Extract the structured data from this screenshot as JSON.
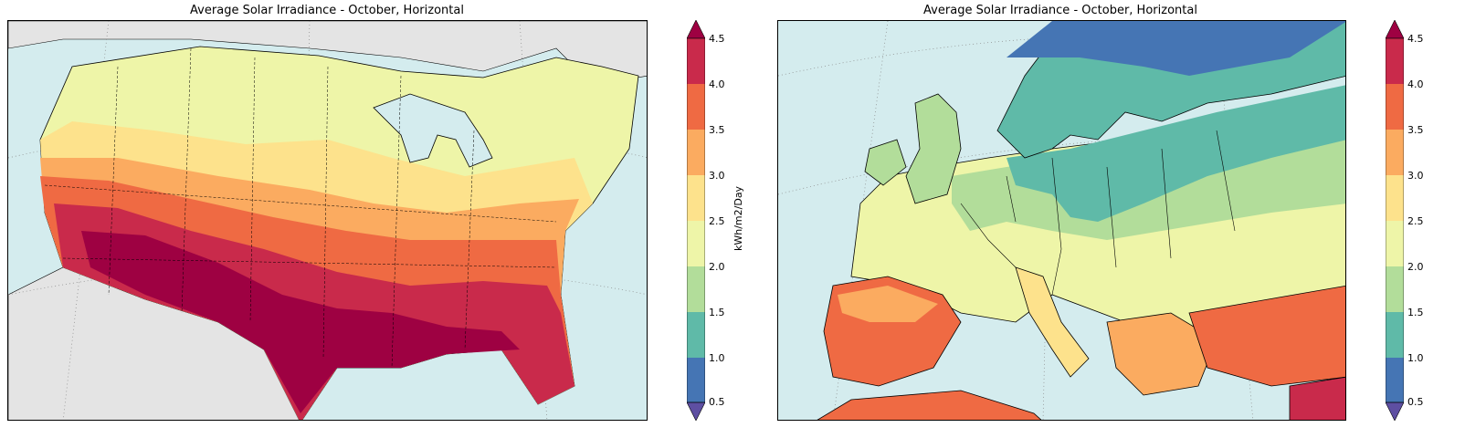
{
  "colors": {
    "ocean": "#d4ecee",
    "land_outside": "#e4e4e4",
    "bins": [
      "#4575b4",
      "#5fbaa8",
      "#b2dd9a",
      "#eef5a8",
      "#fde28c",
      "#fbab60",
      "#ef6a43",
      "#c92a4b",
      "#9e0142"
    ]
  },
  "left_map": {
    "title": "Average Solar Irradiance - October, Horizontal",
    "region": "United States",
    "colorbar": {
      "label": "kWh/m2/Day",
      "ticks": [
        "0.5",
        "1.0",
        "1.5",
        "2.0",
        "2.5",
        "3.0",
        "3.5",
        "4.0",
        "4.5"
      ]
    }
  },
  "right_map": {
    "title": "Average Solar Irradiance - October, Horizontal",
    "region": "Europe",
    "colorbar": {
      "ticks": [
        "0.5",
        "1.0",
        "1.5",
        "2.0",
        "2.5",
        "3.0",
        "3.5",
        "4.0",
        "4.5"
      ]
    }
  }
}
